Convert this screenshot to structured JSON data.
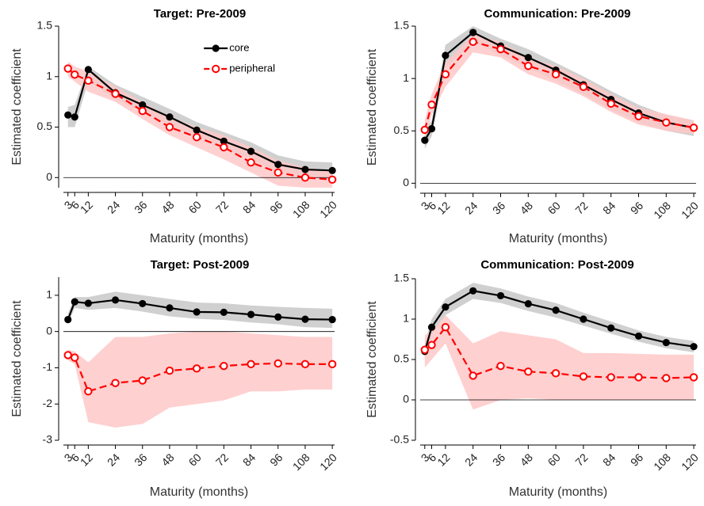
{
  "chart_data": [
    {
      "type": "line",
      "title": "Target: Pre-2009",
      "xlabel": "Maturity (months)",
      "ylabel": "Estimated coefficient",
      "x": [
        3,
        6,
        12,
        24,
        36,
        48,
        60,
        72,
        84,
        96,
        108,
        120
      ],
      "xlim": [
        1,
        121
      ],
      "xticks": [
        3,
        6,
        12,
        24,
        36,
        48,
        60,
        72,
        84,
        96,
        108,
        120
      ],
      "ylim": [
        -0.1,
        1.5
      ],
      "yticks": [
        0,
        0.5,
        1,
        1.5
      ],
      "zero_line": true,
      "legend": "upper center",
      "series": [
        {
          "name": "core",
          "color": "#000000",
          "band_color": "#c8c8c8",
          "linestyle": "solid",
          "marker": "filled-circle",
          "values": [
            0.62,
            0.6,
            1.07,
            0.84,
            0.72,
            0.6,
            0.47,
            0.36,
            0.26,
            0.13,
            0.08,
            0.07
          ],
          "lower": [
            0.5,
            0.5,
            0.95,
            0.78,
            0.65,
            0.52,
            0.4,
            0.28,
            0.18,
            0.06,
            0.01,
            0.0
          ],
          "upper": [
            0.7,
            0.72,
            1.1,
            0.92,
            0.8,
            0.68,
            0.55,
            0.45,
            0.35,
            0.22,
            0.16,
            0.15
          ]
        },
        {
          "name": "peripheral",
          "color": "#ff0000",
          "band_color": "#ffc8c8",
          "linestyle": "dashed",
          "marker": "open-circle",
          "values": [
            1.08,
            1.02,
            0.96,
            0.83,
            0.66,
            0.5,
            0.4,
            0.3,
            0.15,
            0.05,
            0.0,
            -0.02
          ],
          "lower": [
            1.0,
            0.95,
            0.85,
            0.75,
            0.58,
            0.42,
            0.3,
            0.18,
            0.05,
            -0.08,
            -0.1,
            -0.1
          ],
          "upper": [
            1.15,
            1.1,
            1.05,
            0.9,
            0.75,
            0.6,
            0.5,
            0.42,
            0.3,
            0.17,
            0.1,
            0.06
          ]
        }
      ]
    },
    {
      "type": "line",
      "title": "Communication: Pre-2009",
      "xlabel": "Maturity (months)",
      "ylabel": "Estimated coefficient",
      "x": [
        3,
        6,
        12,
        24,
        36,
        48,
        60,
        72,
        84,
        96,
        108,
        120
      ],
      "xlim": [
        1,
        121
      ],
      "xticks": [
        3,
        6,
        12,
        24,
        36,
        48,
        60,
        72,
        84,
        96,
        108,
        120
      ],
      "ylim": [
        -0.05,
        1.5
      ],
      "yticks": [
        0,
        0.5,
        1,
        1.5
      ],
      "zero_line": true,
      "series": [
        {
          "color": "#000000",
          "band_color": "#c8c8c8",
          "linestyle": "solid",
          "marker": "filled-circle",
          "values": [
            0.41,
            0.52,
            1.22,
            1.44,
            1.31,
            1.2,
            1.08,
            0.94,
            0.8,
            0.67,
            0.58,
            0.53
          ],
          "lower": [
            0.33,
            0.45,
            1.1,
            1.35,
            1.22,
            1.1,
            0.98,
            0.85,
            0.7,
            0.58,
            0.5,
            0.45
          ],
          "upper": [
            0.5,
            0.6,
            1.32,
            1.5,
            1.38,
            1.28,
            1.15,
            1.02,
            0.88,
            0.75,
            0.65,
            0.6
          ]
        },
        {
          "color": "#ff0000",
          "band_color": "#ffc8c8",
          "linestyle": "dashed",
          "marker": "open-circle",
          "values": [
            0.51,
            0.75,
            1.04,
            1.35,
            1.28,
            1.12,
            1.04,
            0.92,
            0.76,
            0.64,
            0.58,
            0.53
          ],
          "lower": [
            0.42,
            0.65,
            0.92,
            1.25,
            1.2,
            1.04,
            0.95,
            0.83,
            0.68,
            0.56,
            0.5,
            0.47
          ],
          "upper": [
            0.6,
            0.85,
            1.15,
            1.42,
            1.35,
            1.2,
            1.12,
            1.0,
            0.85,
            0.72,
            0.66,
            0.6
          ]
        }
      ]
    },
    {
      "type": "line",
      "title": "Target: Post-2009",
      "xlabel": "Maturity (months)",
      "ylabel": "Estimated coefficient",
      "x": [
        3,
        6,
        12,
        24,
        36,
        48,
        60,
        72,
        84,
        96,
        108,
        120
      ],
      "xlim": [
        1,
        121
      ],
      "xticks": [
        3,
        6,
        12,
        24,
        36,
        48,
        60,
        72,
        84,
        96,
        108,
        120
      ],
      "ylim": [
        -3,
        1.5
      ],
      "yticks": [
        -3,
        -2,
        -1,
        0,
        1
      ],
      "zero_line": true,
      "series": [
        {
          "color": "#000000",
          "band_color": "#c8c8c8",
          "linestyle": "solid",
          "marker": "filled-circle",
          "values": [
            0.33,
            0.82,
            0.78,
            0.87,
            0.77,
            0.65,
            0.54,
            0.53,
            0.47,
            0.4,
            0.34,
            0.33
          ],
          "lower": [
            0.2,
            0.65,
            0.6,
            0.65,
            0.55,
            0.42,
            0.35,
            0.32,
            0.25,
            0.2,
            0.12,
            0.1
          ],
          "upper": [
            0.5,
            0.95,
            0.95,
            1.1,
            1.0,
            0.9,
            0.8,
            0.78,
            0.72,
            0.68,
            0.65,
            0.63
          ]
        },
        {
          "color": "#ff0000",
          "band_color": "#ffc8c8",
          "linestyle": "dashed",
          "marker": "open-circle",
          "values": [
            -0.65,
            -0.72,
            -1.65,
            -1.42,
            -1.35,
            -1.08,
            -1.02,
            -0.95,
            -0.9,
            -0.88,
            -0.9,
            -0.9
          ],
          "lower": [
            -0.8,
            -0.9,
            -2.5,
            -2.65,
            -2.55,
            -2.1,
            -2.0,
            -1.9,
            -1.65,
            -1.65,
            -1.6,
            -1.6
          ],
          "upper": [
            -0.5,
            -0.55,
            -0.85,
            -0.15,
            -0.15,
            -0.05,
            0.0,
            0.0,
            -0.05,
            -0.1,
            -0.15,
            -0.15
          ]
        }
      ]
    },
    {
      "type": "line",
      "title": "Communication: Post-2009",
      "xlabel": "Maturity (months)",
      "ylabel": "Estimated coefficient",
      "x": [
        3,
        6,
        12,
        24,
        36,
        48,
        60,
        72,
        84,
        96,
        108,
        120
      ],
      "xlim": [
        1,
        121
      ],
      "xticks": [
        3,
        6,
        12,
        24,
        36,
        48,
        60,
        72,
        84,
        96,
        108,
        120
      ],
      "ylim": [
        -0.5,
        1.5
      ],
      "yticks": [
        -0.5,
        0,
        0.5,
        1,
        1.5
      ],
      "zero_line": true,
      "series": [
        {
          "color": "#000000",
          "band_color": "#c8c8c8",
          "linestyle": "solid",
          "marker": "filled-circle",
          "values": [
            0.6,
            0.9,
            1.15,
            1.35,
            1.29,
            1.19,
            1.11,
            1.0,
            0.89,
            0.79,
            0.71,
            0.66
          ],
          "lower": [
            0.5,
            0.8,
            1.05,
            1.25,
            1.2,
            1.1,
            1.02,
            0.92,
            0.82,
            0.72,
            0.64,
            0.59
          ],
          "upper": [
            0.7,
            1.0,
            1.25,
            1.45,
            1.38,
            1.28,
            1.2,
            1.08,
            0.97,
            0.86,
            0.78,
            0.73
          ]
        },
        {
          "color": "#ff0000",
          "band_color": "#ffc8c8",
          "linestyle": "dashed",
          "marker": "open-circle",
          "values": [
            0.62,
            0.68,
            0.9,
            0.3,
            0.42,
            0.35,
            0.33,
            0.29,
            0.28,
            0.28,
            0.27,
            0.28
          ],
          "lower": [
            0.4,
            0.5,
            0.7,
            -0.12,
            0.0,
            0.02,
            0.0,
            0.0,
            0.0,
            0.0,
            0.0,
            0.0
          ],
          "upper": [
            0.8,
            0.85,
            1.05,
            0.7,
            0.85,
            0.8,
            0.75,
            0.58,
            0.58,
            0.57,
            0.56,
            0.56
          ]
        }
      ]
    }
  ]
}
